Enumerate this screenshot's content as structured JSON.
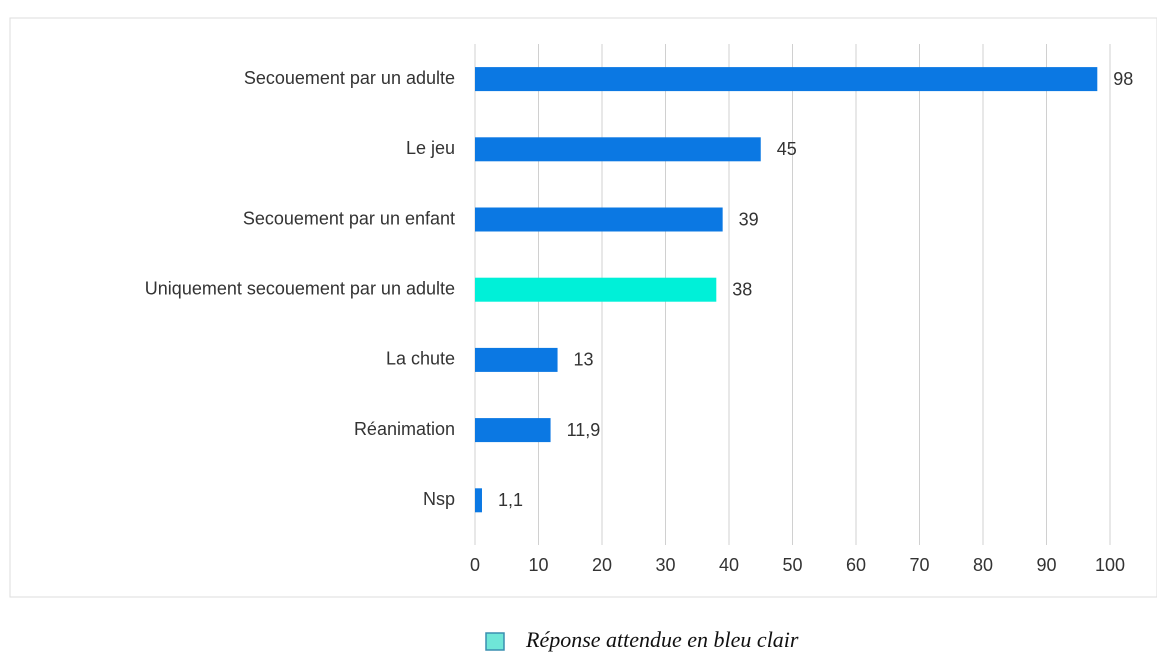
{
  "chart_data": {
    "type": "bar",
    "orientation": "horizontal",
    "categories": [
      "Secouement par un adulte",
      "Le jeu",
      "Secouement par un enfant",
      "Uniquement secouement par un adulte",
      "La chute",
      "Réanimation",
      "Nsp"
    ],
    "values": [
      98,
      45,
      39,
      38,
      13,
      11.9,
      1.1
    ],
    "value_labels": [
      "98",
      "45",
      "39",
      "38",
      "13",
      "11,9",
      "1,1"
    ],
    "colors": [
      "#0b78e3",
      "#0b78e3",
      "#0b78e3",
      "#00f0d8",
      "#0b78e3",
      "#0b78e3",
      "#0b78e3"
    ],
    "xlim": [
      0,
      100
    ],
    "xticks": [
      0,
      10,
      20,
      30,
      40,
      50,
      60,
      70,
      80,
      90,
      100
    ],
    "grid": true,
    "legend": {
      "label": "Réponse attendue en bleu clair",
      "color": "#6fe6d8"
    }
  }
}
